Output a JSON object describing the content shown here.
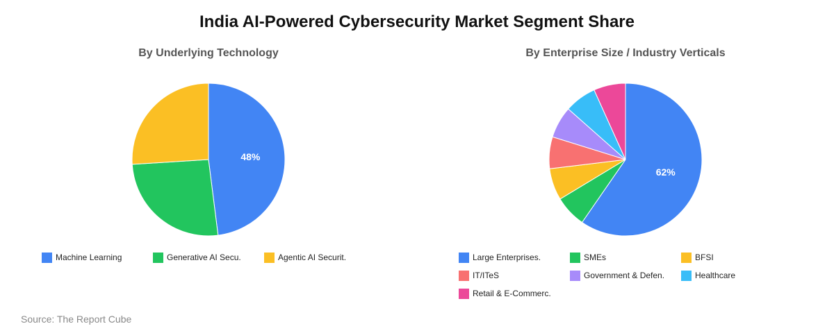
{
  "title": "India AI-Powered Cybersecurity Market Segment Share",
  "source": "Source: The Report Cube",
  "chart_data": [
    {
      "type": "pie",
      "title": "By Underlying Technology",
      "categories": [
        "Machine Learning",
        "Generative AI Secu.",
        "Agentic AI Securit."
      ],
      "values": [
        48,
        26,
        26
      ],
      "colors": [
        "#4285f4",
        "#22c55e",
        "#fbbf24"
      ],
      "data_labels": [
        "48%",
        "",
        ""
      ],
      "legend": "bottom"
    },
    {
      "type": "pie",
      "title": "By Enterprise Size / Industry Verticals",
      "categories": [
        "Large Enterprises.",
        "SMEs",
        "BFSI",
        "IT/ITeS",
        "Government & Defen.",
        "Healthcare",
        "Retail & E-Commerc."
      ],
      "values": [
        62,
        7,
        7,
        7,
        7,
        7,
        7
      ],
      "colors": [
        "#4285f4",
        "#22c55e",
        "#fbbf24",
        "#f87171",
        "#a78bfa",
        "#38bdf8",
        "#ec4899"
      ],
      "data_labels": [
        "62%",
        "",
        "",
        "",
        "",
        "",
        ""
      ],
      "legend": "bottom"
    }
  ]
}
